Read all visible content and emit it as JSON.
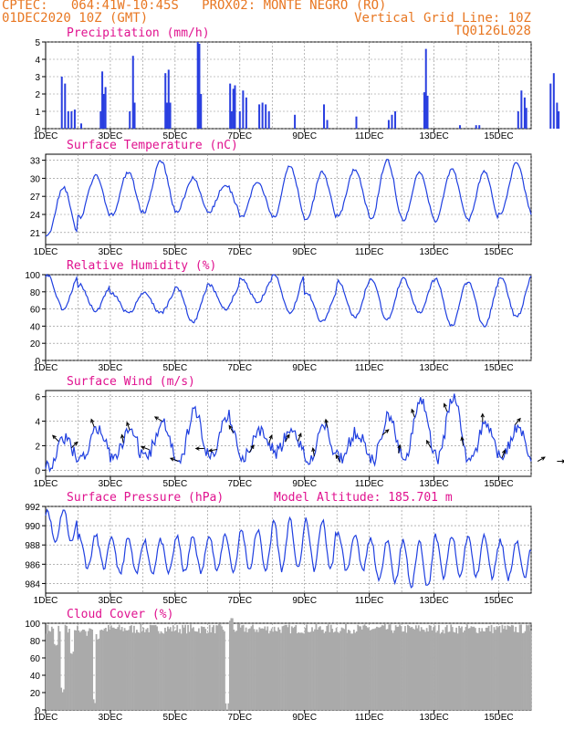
{
  "header": {
    "line1_left": "CPTEC:   064:41W-10:45S   PROX02: MONTE NEGRO (RO)",
    "line2_left": "01DEC2020 10Z (GMT)",
    "line2_right": "Vertical Grid Line: 10Z",
    "line3_right": "TQ0126L028"
  },
  "colors": {
    "header": "#e87722",
    "title": "#e0128f",
    "line": "#1f3fe0",
    "bar": "#2a3fe0",
    "cloud": "#aaaaaa"
  },
  "model_altitude_label": "Model Altitude: 185.701 m",
  "x_axis": {
    "labels": [
      "1DEC",
      "3DEC",
      "5DEC",
      "7DEC",
      "9DEC",
      "11DEC",
      "13DEC",
      "15DEC"
    ]
  },
  "chart_data": [
    {
      "id": "precip",
      "type": "bar",
      "title": "Precipitation (mm/h)",
      "ylim": [
        0,
        5
      ],
      "yticks": [
        0,
        1,
        2,
        3,
        4,
        5
      ],
      "events": [
        [
          0.5,
          3.0
        ],
        [
          0.6,
          2.6
        ],
        [
          0.7,
          1.0
        ],
        [
          0.8,
          1.0
        ],
        [
          0.9,
          1.1
        ],
        [
          1.1,
          0.3
        ],
        [
          1.7,
          1.0
        ],
        [
          1.75,
          3.3
        ],
        [
          1.8,
          2.0
        ],
        [
          1.85,
          2.4
        ],
        [
          2.6,
          1.0
        ],
        [
          2.7,
          4.2
        ],
        [
          2.75,
          1.5
        ],
        [
          3.7,
          3.2
        ],
        [
          3.75,
          1.5
        ],
        [
          3.8,
          3.4
        ],
        [
          3.85,
          1.5
        ],
        [
          4.7,
          5.0
        ],
        [
          4.75,
          4.9
        ],
        [
          4.8,
          2.0
        ],
        [
          5.7,
          2.6
        ],
        [
          5.75,
          1.0
        ],
        [
          5.8,
          2.3
        ],
        [
          5.85,
          2.5
        ],
        [
          6.0,
          1.0
        ],
        [
          6.1,
          2.2
        ],
        [
          6.2,
          1.8
        ],
        [
          6.6,
          1.4
        ],
        [
          6.7,
          1.5
        ],
        [
          6.8,
          1.4
        ],
        [
          6.9,
          1.0
        ],
        [
          7.7,
          0.8
        ],
        [
          8.6,
          1.4
        ],
        [
          8.7,
          0.5
        ],
        [
          9.6,
          0.7
        ],
        [
          10.6,
          0.5
        ],
        [
          10.7,
          0.8
        ],
        [
          10.8,
          1.0
        ],
        [
          11.7,
          2.1
        ],
        [
          11.75,
          4.6
        ],
        [
          11.8,
          1.9
        ],
        [
          12.8,
          0.2
        ],
        [
          13.3,
          0.2
        ],
        [
          13.4,
          0.2
        ],
        [
          14.6,
          1.0
        ],
        [
          14.7,
          2.2
        ],
        [
          14.8,
          1.8
        ],
        [
          14.85,
          1.2
        ],
        [
          15.6,
          2.6
        ],
        [
          15.7,
          3.2
        ],
        [
          15.8,
          1.5
        ],
        [
          15.85,
          1.0
        ]
      ]
    },
    {
      "id": "temp",
      "type": "line",
      "title": "Surface Temperature (nC)",
      "ylim": [
        19,
        34
      ],
      "yticks": [
        21,
        24,
        27,
        30,
        33
      ],
      "diurnal": {
        "min": [
          20.5,
          23.5,
          24.0,
          24.5,
          24.5,
          24.5,
          23.5,
          23.5,
          23.0,
          24.0,
          23.0,
          23.0,
          23.0,
          23.0,
          24.0,
          24.0
        ],
        "max": [
          28.5,
          30.5,
          31.0,
          33.0,
          30.0,
          29.0,
          29.5,
          32.0,
          31.0,
          31.5,
          33.0,
          31.0,
          31.5,
          31.0,
          32.5,
          29.5
        ]
      }
    },
    {
      "id": "rh",
      "type": "line",
      "title": "Relative Humidity (%)",
      "ylim": [
        0,
        100
      ],
      "yticks": [
        0,
        20,
        40,
        60,
        80,
        100
      ],
      "diurnal": {
        "min": [
          60,
          58,
          55,
          55,
          45,
          60,
          68,
          55,
          45,
          50,
          48,
          55,
          40,
          40,
          50,
          55
        ],
        "max": [
          100,
          88,
          78,
          80,
          85,
          88,
          95,
          100,
          80,
          92,
          95,
          95,
          95,
          92,
          98,
          98
        ]
      }
    },
    {
      "id": "wind",
      "type": "line",
      "title": "Surface Wind (m/s)",
      "ylim": [
        -0.5,
        6.5
      ],
      "yticks": [
        0,
        2,
        4,
        6
      ],
      "arrows": [
        [
          0.4,
          225
        ],
        [
          0.8,
          135
        ],
        [
          1.5,
          200
        ],
        [
          2.4,
          190
        ],
        [
          2.6,
          200
        ],
        [
          3.2,
          250
        ],
        [
          3.6,
          240
        ],
        [
          4.1,
          250
        ],
        [
          4.9,
          270
        ],
        [
          5.3,
          280
        ],
        [
          5.8,
          210
        ],
        [
          6.3,
          150
        ],
        [
          6.9,
          160
        ],
        [
          7.4,
          150
        ],
        [
          7.8,
          160
        ],
        [
          8.3,
          190
        ],
        [
          8.7,
          190
        ],
        [
          9.1,
          210
        ],
        [
          10.4,
          130
        ],
        [
          10.9,
          170
        ],
        [
          11.4,
          200
        ],
        [
          11.9,
          210
        ],
        [
          12.4,
          200
        ],
        [
          12.9,
          190
        ],
        [
          13.5,
          180
        ],
        [
          14.1,
          160
        ],
        [
          14.5,
          140
        ],
        [
          15.2,
          120
        ],
        [
          15.8,
          90
        ]
      ],
      "diurnal": {
        "min": [
          0.5,
          0.8,
          0.8,
          1.0,
          0.3,
          1.2,
          1.0,
          1.5,
          0.6,
          1.0,
          0.8,
          0.8,
          0.9,
          0.8,
          1.0,
          0.3
        ],
        "max": [
          2.6,
          3.5,
          3.2,
          3.8,
          4.8,
          4.5,
          3.3,
          3.2,
          3.5,
          3.0,
          4.5,
          5.9,
          5.9,
          3.6,
          3.5,
          3.4
        ]
      }
    },
    {
      "id": "press",
      "type": "line",
      "title": "Surface Pressure (hPa)",
      "ylim": [
        983,
        992
      ],
      "yticks": [
        984,
        986,
        988,
        990,
        992
      ],
      "semidiurnal": {
        "amp": [
          2.0,
          2.0,
          2.2,
          2.0,
          2.2,
          2.3,
          2.4,
          3.0,
          3.0,
          2.3,
          2.6,
          2.8,
          2.5,
          2.5,
          2.3,
          1.8
        ],
        "mean": [
          990.0,
          987.3,
          986.8,
          986.8,
          987.0,
          987.2,
          987.5,
          988.0,
          988.0,
          987.2,
          986.4,
          986.0,
          986.8,
          986.8,
          986.5,
          986.4
        ]
      }
    },
    {
      "id": "cloud",
      "type": "bar",
      "title": "Cloud Cover (%)",
      "ylim": [
        0,
        100
      ],
      "yticks": [
        0,
        20,
        40,
        60,
        80,
        100
      ],
      "low_values": [
        [
          0.3,
          70
        ],
        [
          0.5,
          20
        ],
        [
          0.8,
          60
        ],
        [
          1.2,
          85
        ],
        [
          1.5,
          5
        ],
        [
          1.6,
          80
        ],
        [
          5.6,
          0.5
        ],
        [
          5.7,
          100
        ]
      ]
    }
  ]
}
